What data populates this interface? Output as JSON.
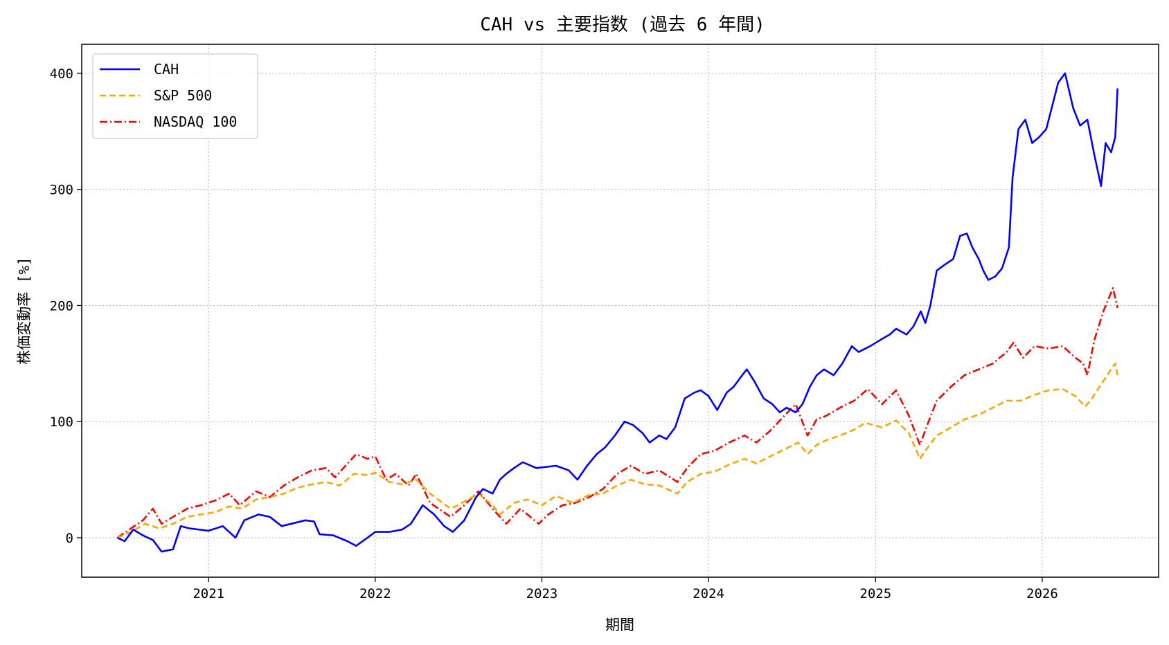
{
  "chart_data": {
    "type": "line",
    "title": "CAH vs 主要指数 (過去 6 年間)",
    "xlabel": "期間",
    "ylabel": "株価変動率 [%]",
    "xlim": [
      "2020-03-29",
      "2026-09-13"
    ],
    "ylim": [
      -34,
      425
    ],
    "x_ticks": [
      "2021",
      "2022",
      "2023",
      "2024",
      "2025",
      "2026"
    ],
    "y_ticks": [
      0,
      100,
      200,
      300,
      400
    ],
    "grid": true,
    "legend_position": "top-left",
    "series": [
      {
        "name": "CAH",
        "color": "#0000ff",
        "style": "solid",
        "points": [
          [
            "2020-06-15",
            0
          ],
          [
            "2020-07-01",
            -3
          ],
          [
            "2020-07-20",
            7
          ],
          [
            "2020-08-10",
            2
          ],
          [
            "2020-09-01",
            -2
          ],
          [
            "2020-09-20",
            -12
          ],
          [
            "2020-10-15",
            -10
          ],
          [
            "2020-11-01",
            10
          ],
          [
            "2020-11-20",
            8
          ],
          [
            "2021-01-01",
            6
          ],
          [
            "2021-02-01",
            10
          ],
          [
            "2021-03-01",
            0
          ],
          [
            "2021-03-20",
            15
          ],
          [
            "2021-04-20",
            20
          ],
          [
            "2021-05-15",
            18
          ],
          [
            "2021-06-10",
            10
          ],
          [
            "2021-07-01",
            12
          ],
          [
            "2021-08-01",
            15
          ],
          [
            "2021-08-20",
            14
          ],
          [
            "2021-09-01",
            3
          ],
          [
            "2021-10-01",
            2
          ],
          [
            "2021-11-01",
            -3
          ],
          [
            "2021-11-20",
            -7
          ],
          [
            "2021-12-15",
            0
          ],
          [
            "2022-01-01",
            5
          ],
          [
            "2022-02-01",
            5
          ],
          [
            "2022-03-01",
            7
          ],
          [
            "2022-03-20",
            12
          ],
          [
            "2022-04-15",
            28
          ],
          [
            "2022-05-10",
            20
          ],
          [
            "2022-06-01",
            10
          ],
          [
            "2022-06-20",
            5
          ],
          [
            "2022-07-15",
            15
          ],
          [
            "2022-08-10",
            35
          ],
          [
            "2022-08-25",
            42
          ],
          [
            "2022-09-15",
            38
          ],
          [
            "2022-10-01",
            50
          ],
          [
            "2022-10-15",
            55
          ],
          [
            "2022-11-01",
            60
          ],
          [
            "2022-11-20",
            65
          ],
          [
            "2022-12-20",
            60
          ],
          [
            "2023-02-01",
            62
          ],
          [
            "2023-03-01",
            58
          ],
          [
            "2023-03-20",
            50
          ],
          [
            "2023-04-10",
            62
          ],
          [
            "2023-05-01",
            72
          ],
          [
            "2023-05-20",
            78
          ],
          [
            "2023-06-10",
            88
          ],
          [
            "2023-07-01",
            100
          ],
          [
            "2023-07-20",
            97
          ],
          [
            "2023-08-10",
            90
          ],
          [
            "2023-08-25",
            82
          ],
          [
            "2023-09-15",
            88
          ],
          [
            "2023-10-01",
            85
          ],
          [
            "2023-10-20",
            95
          ],
          [
            "2023-11-10",
            120
          ],
          [
            "2023-12-01",
            125
          ],
          [
            "2023-12-15",
            127
          ],
          [
            "2024-01-01",
            122
          ],
          [
            "2024-01-20",
            110
          ],
          [
            "2024-02-10",
            125
          ],
          [
            "2024-02-25",
            130
          ],
          [
            "2024-03-15",
            140
          ],
          [
            "2024-03-25",
            145
          ],
          [
            "2024-04-10",
            135
          ],
          [
            "2024-05-01",
            120
          ],
          [
            "2024-05-20",
            115
          ],
          [
            "2024-06-05",
            108
          ],
          [
            "2024-06-20",
            112
          ],
          [
            "2024-07-10",
            108
          ],
          [
            "2024-07-25",
            115
          ],
          [
            "2024-08-10",
            130
          ],
          [
            "2024-08-25",
            140
          ],
          [
            "2024-09-10",
            145
          ],
          [
            "2024-10-01",
            140
          ],
          [
            "2024-10-20",
            150
          ],
          [
            "2024-11-10",
            165
          ],
          [
            "2024-11-25",
            160
          ],
          [
            "2024-12-20",
            165
          ],
          [
            "2025-01-10",
            170
          ],
          [
            "2025-02-01",
            175
          ],
          [
            "2025-02-15",
            180
          ],
          [
            "2025-03-10",
            175
          ],
          [
            "2025-03-25",
            182
          ],
          [
            "2025-04-10",
            195
          ],
          [
            "2025-04-20",
            185
          ],
          [
            "2025-05-01",
            200
          ],
          [
            "2025-05-15",
            230
          ],
          [
            "2025-06-01",
            235
          ],
          [
            "2025-06-20",
            240
          ],
          [
            "2025-07-05",
            260
          ],
          [
            "2025-07-20",
            262
          ],
          [
            "2025-08-01",
            250
          ],
          [
            "2025-08-15",
            240
          ],
          [
            "2025-08-25",
            230
          ],
          [
            "2025-09-05",
            222
          ],
          [
            "2025-09-20",
            225
          ],
          [
            "2025-10-05",
            232
          ],
          [
            "2025-10-20",
            250
          ],
          [
            "2025-10-28",
            310
          ],
          [
            "2025-11-10",
            352
          ],
          [
            "2025-11-25",
            360
          ],
          [
            "2025-12-10",
            340
          ],
          [
            "2025-12-25",
            345
          ],
          [
            "2026-01-10",
            352
          ],
          [
            "2026-01-25",
            375
          ],
          [
            "2026-02-05",
            392
          ],
          [
            "2026-02-20",
            400
          ],
          [
            "2026-03-01",
            385
          ],
          [
            "2026-03-10",
            370
          ],
          [
            "2026-03-25",
            355
          ],
          [
            "2026-04-10",
            360
          ],
          [
            "2026-04-25",
            330
          ],
          [
            "2026-05-05",
            312
          ],
          [
            "2026-05-10",
            303
          ],
          [
            "2026-05-20",
            340
          ],
          [
            "2026-06-01",
            332
          ],
          [
            "2026-06-10",
            345
          ],
          [
            "2026-06-15",
            387
          ]
        ]
      },
      {
        "name": "S&P 500",
        "color": "#ffa500",
        "style": "dashed",
        "points": [
          [
            "2020-06-15",
            0
          ],
          [
            "2020-07-15",
            5
          ],
          [
            "2020-08-15",
            12
          ],
          [
            "2020-09-15",
            8
          ],
          [
            "2020-10-15",
            12
          ],
          [
            "2020-11-15",
            18
          ],
          [
            "2020-12-15",
            20
          ],
          [
            "2021-01-15",
            22
          ],
          [
            "2021-02-15",
            27
          ],
          [
            "2021-03-15",
            25
          ],
          [
            "2021-04-15",
            33
          ],
          [
            "2021-05-15",
            35
          ],
          [
            "2021-06-15",
            38
          ],
          [
            "2021-07-15",
            43
          ],
          [
            "2021-08-15",
            46
          ],
          [
            "2021-09-15",
            48
          ],
          [
            "2021-10-15",
            45
          ],
          [
            "2021-11-15",
            55
          ],
          [
            "2021-12-15",
            54
          ],
          [
            "2022-01-01",
            56
          ],
          [
            "2022-02-01",
            48
          ],
          [
            "2022-03-01",
            46
          ],
          [
            "2022-04-01",
            50
          ],
          [
            "2022-05-01",
            38
          ],
          [
            "2022-06-15",
            25
          ],
          [
            "2022-07-01",
            28
          ],
          [
            "2022-08-15",
            38
          ],
          [
            "2022-09-15",
            28
          ],
          [
            "2022-10-01",
            20
          ],
          [
            "2022-11-01",
            30
          ],
          [
            "2022-12-01",
            33
          ],
          [
            "2023-01-01",
            28
          ],
          [
            "2023-02-01",
            36
          ],
          [
            "2023-03-10",
            30
          ],
          [
            "2023-04-15",
            37
          ],
          [
            "2023-05-15",
            38
          ],
          [
            "2023-06-15",
            45
          ],
          [
            "2023-07-15",
            50
          ],
          [
            "2023-08-15",
            46
          ],
          [
            "2023-09-15",
            45
          ],
          [
            "2023-10-25",
            38
          ],
          [
            "2023-11-15",
            48
          ],
          [
            "2023-12-15",
            55
          ],
          [
            "2024-01-15",
            57
          ],
          [
            "2024-02-15",
            63
          ],
          [
            "2024-03-20",
            68
          ],
          [
            "2024-04-15",
            64
          ],
          [
            "2024-05-15",
            70
          ],
          [
            "2024-06-15",
            76
          ],
          [
            "2024-07-15",
            82
          ],
          [
            "2024-08-05",
            72
          ],
          [
            "2024-08-25",
            80
          ],
          [
            "2024-09-15",
            84
          ],
          [
            "2024-10-15",
            88
          ],
          [
            "2024-11-15",
            93
          ],
          [
            "2024-12-10",
            99
          ],
          [
            "2025-01-15",
            95
          ],
          [
            "2025-02-15",
            101
          ],
          [
            "2025-03-15",
            90
          ],
          [
            "2025-04-08",
            68
          ],
          [
            "2025-04-20",
            75
          ],
          [
            "2025-05-15",
            88
          ],
          [
            "2025-06-15",
            95
          ],
          [
            "2025-07-15",
            102
          ],
          [
            "2025-08-15",
            106
          ],
          [
            "2025-09-15",
            112
          ],
          [
            "2025-10-15",
            118
          ],
          [
            "2025-11-15",
            118
          ],
          [
            "2025-12-15",
            123
          ],
          [
            "2026-01-15",
            127
          ],
          [
            "2026-02-15",
            128
          ],
          [
            "2026-03-15",
            122
          ],
          [
            "2026-04-05",
            113
          ],
          [
            "2026-04-20",
            120
          ],
          [
            "2026-05-15",
            135
          ],
          [
            "2026-06-01",
            145
          ],
          [
            "2026-06-10",
            150
          ],
          [
            "2026-06-15",
            140
          ]
        ]
      },
      {
        "name": "NASDAQ 100",
        "color": "#ff0000",
        "style": "dashdot",
        "points": [
          [
            "2020-06-15",
            0
          ],
          [
            "2020-07-15",
            8
          ],
          [
            "2020-08-10",
            15
          ],
          [
            "2020-09-01",
            25
          ],
          [
            "2020-09-20",
            12
          ],
          [
            "2020-10-15",
            18
          ],
          [
            "2020-11-15",
            25
          ],
          [
            "2020-12-15",
            28
          ],
          [
            "2021-01-15",
            32
          ],
          [
            "2021-02-15",
            38
          ],
          [
            "2021-03-10",
            28
          ],
          [
            "2021-04-15",
            40
          ],
          [
            "2021-05-15",
            35
          ],
          [
            "2021-06-15",
            45
          ],
          [
            "2021-07-15",
            52
          ],
          [
            "2021-08-15",
            58
          ],
          [
            "2021-09-15",
            60
          ],
          [
            "2021-10-05",
            52
          ],
          [
            "2021-11-20",
            72
          ],
          [
            "2021-12-15",
            68
          ],
          [
            "2022-01-01",
            70
          ],
          [
            "2022-01-25",
            50
          ],
          [
            "2022-02-15",
            55
          ],
          [
            "2022-03-15",
            45
          ],
          [
            "2022-04-01",
            55
          ],
          [
            "2022-05-01",
            30
          ],
          [
            "2022-06-15",
            18
          ],
          [
            "2022-07-15",
            28
          ],
          [
            "2022-08-15",
            40
          ],
          [
            "2022-09-15",
            25
          ],
          [
            "2022-10-15",
            12
          ],
          [
            "2022-11-15",
            25
          ],
          [
            "2022-12-25",
            12
          ],
          [
            "2023-01-15",
            20
          ],
          [
            "2023-02-15",
            28
          ],
          [
            "2023-03-15",
            30
          ],
          [
            "2023-04-15",
            35
          ],
          [
            "2023-05-15",
            42
          ],
          [
            "2023-06-15",
            55
          ],
          [
            "2023-07-15",
            62
          ],
          [
            "2023-08-15",
            55
          ],
          [
            "2023-09-15",
            58
          ],
          [
            "2023-10-25",
            48
          ],
          [
            "2023-11-15",
            60
          ],
          [
            "2023-12-15",
            72
          ],
          [
            "2024-01-15",
            75
          ],
          [
            "2024-02-15",
            82
          ],
          [
            "2024-03-20",
            88
          ],
          [
            "2024-04-15",
            82
          ],
          [
            "2024-05-15",
            92
          ],
          [
            "2024-06-15",
            105
          ],
          [
            "2024-07-10",
            115
          ],
          [
            "2024-08-05",
            88
          ],
          [
            "2024-08-25",
            102
          ],
          [
            "2024-09-15",
            105
          ],
          [
            "2024-10-15",
            112
          ],
          [
            "2024-11-15",
            118
          ],
          [
            "2024-12-15",
            128
          ],
          [
            "2025-01-15",
            115
          ],
          [
            "2025-02-15",
            127
          ],
          [
            "2025-03-15",
            105
          ],
          [
            "2025-04-08",
            80
          ],
          [
            "2025-04-25",
            98
          ],
          [
            "2025-05-15",
            118
          ],
          [
            "2025-06-15",
            130
          ],
          [
            "2025-07-15",
            140
          ],
          [
            "2025-08-15",
            145
          ],
          [
            "2025-09-15",
            150
          ],
          [
            "2025-10-15",
            160
          ],
          [
            "2025-10-30",
            168
          ],
          [
            "2025-11-20",
            155
          ],
          [
            "2025-12-15",
            165
          ],
          [
            "2026-01-15",
            163
          ],
          [
            "2026-02-15",
            165
          ],
          [
            "2026-03-15",
            155
          ],
          [
            "2026-04-01",
            150
          ],
          [
            "2026-04-10",
            140
          ],
          [
            "2026-04-25",
            170
          ],
          [
            "2026-05-15",
            195
          ],
          [
            "2026-06-05",
            215
          ],
          [
            "2026-06-15",
            198
          ]
        ]
      }
    ]
  }
}
